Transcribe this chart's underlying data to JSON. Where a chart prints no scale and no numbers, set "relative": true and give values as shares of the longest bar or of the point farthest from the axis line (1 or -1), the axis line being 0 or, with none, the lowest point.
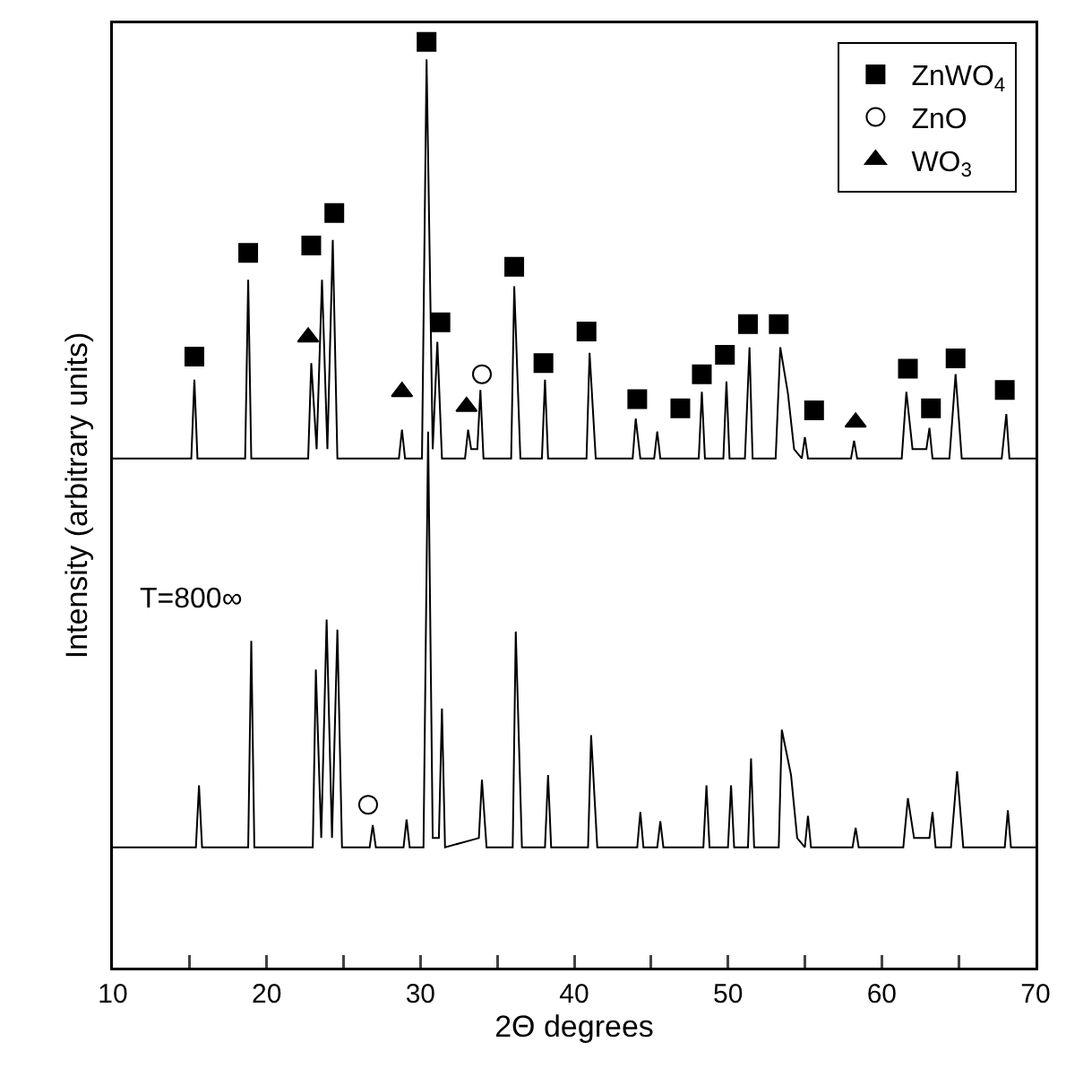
{
  "chart_data": {
    "type": "line",
    "relative": true,
    "xlabel": "2Θ degrees",
    "ylabel": "Intensity (arbitrary units)",
    "xlim": [
      10,
      70
    ],
    "xticks": [
      10,
      {
        "value": 15,
        "label": null
      },
      20,
      {
        "value": 25,
        "label": null
      },
      30,
      {
        "value": 35,
        "label": null
      },
      40,
      {
        "value": 45,
        "label": null
      },
      50,
      {
        "value": 55,
        "label": null
      },
      60,
      {
        "value": 65,
        "label": null
      },
      70
    ],
    "grid": false,
    "legend": "top right",
    "line_style": "solid",
    "annotations": [
      "T=800∞"
    ],
    "series": [
      {
        "color": "#000000",
        "marker": "none",
        "x": [
          10,
          15.1,
          15.3,
          15.5,
          18.6,
          18.8,
          19.0,
          22.7,
          22.9,
          23.25,
          23.6,
          23.95,
          24.3,
          24.6,
          28.6,
          28.8,
          29.0,
          30.1,
          30.4,
          30.8,
          31.1,
          31.4,
          32.9,
          33.1,
          33.3,
          33.7,
          33.9,
          34.1,
          35.9,
          36.1,
          36.5,
          37.9,
          38.1,
          38.3,
          40.8,
          41.0,
          41.4,
          43.8,
          44.0,
          44.3,
          45.2,
          45.4,
          45.6,
          48.1,
          48.3,
          48.5,
          49.7,
          49.9,
          50.1,
          51.1,
          51.4,
          51.6,
          53.1,
          53.4,
          53.9,
          54.3,
          54.8,
          55.0,
          55.2,
          58.0,
          58.2,
          58.4,
          61.3,
          61.6,
          62.0,
          62.9,
          63.1,
          63.3,
          64.4,
          64.8,
          65.2,
          67.8,
          68.1,
          68.3,
          70
        ],
        "values": [
          0.55,
          0.55,
          0.635,
          0.55,
          0.55,
          0.743,
          0.55,
          0.55,
          0.653,
          0.56,
          0.743,
          0.56,
          0.786,
          0.55,
          0.55,
          0.581,
          0.55,
          0.55,
          0.981,
          0.56,
          0.676,
          0.55,
          0.55,
          0.581,
          0.56,
          0.56,
          0.624,
          0.55,
          0.55,
          0.736,
          0.55,
          0.55,
          0.635,
          0.55,
          0.55,
          0.664,
          0.55,
          0.55,
          0.593,
          0.55,
          0.55,
          0.579,
          0.55,
          0.55,
          0.622,
          0.55,
          0.55,
          0.633,
          0.55,
          0.55,
          0.67,
          0.55,
          0.55,
          0.67,
          0.62,
          0.56,
          0.55,
          0.573,
          0.55,
          0.55,
          0.569,
          0.55,
          0.55,
          0.622,
          0.56,
          0.56,
          0.583,
          0.55,
          0.55,
          0.641,
          0.55,
          0.55,
          0.598,
          0.55,
          0.55
        ]
      },
      {
        "color": "#000000",
        "marker": "none",
        "x": [
          10,
          15.4,
          15.6,
          15.8,
          18.8,
          19.0,
          19.2,
          23.0,
          23.2,
          23.55,
          23.9,
          24.25,
          24.6,
          24.9,
          26.7,
          26.9,
          27.1,
          28.9,
          29.1,
          29.3,
          30.2,
          30.5,
          30.8,
          31.2,
          31.4,
          31.6,
          33.8,
          34.0,
          34.3,
          36.0,
          36.2,
          36.6,
          38.1,
          38.3,
          38.5,
          40.9,
          41.1,
          41.5,
          44.1,
          44.3,
          44.5,
          45.4,
          45.6,
          45.8,
          48.4,
          48.6,
          48.8,
          50.0,
          50.2,
          50.4,
          51.3,
          51.5,
          51.7,
          53.3,
          53.5,
          54.1,
          54.5,
          55.0,
          55.2,
          55.4,
          58.1,
          58.3,
          58.5,
          61.4,
          61.7,
          62.1,
          63.1,
          63.3,
          63.5,
          64.5,
          64.9,
          65.3,
          68.0,
          68.2,
          68.4,
          70
        ],
        "values": [
          0.13,
          0.13,
          0.197,
          0.13,
          0.13,
          0.353,
          0.13,
          0.13,
          0.322,
          0.14,
          0.376,
          0.14,
          0.365,
          0.13,
          0.13,
          0.154,
          0.13,
          0.13,
          0.16,
          0.13,
          0.13,
          0.579,
          0.14,
          0.14,
          0.28,
          0.13,
          0.14,
          0.203,
          0.13,
          0.13,
          0.363,
          0.13,
          0.13,
          0.208,
          0.13,
          0.13,
          0.251,
          0.13,
          0.13,
          0.168,
          0.13,
          0.13,
          0.158,
          0.13,
          0.13,
          0.197,
          0.13,
          0.13,
          0.197,
          0.13,
          0.13,
          0.226,
          0.13,
          0.13,
          0.257,
          0.208,
          0.14,
          0.13,
          0.164,
          0.13,
          0.13,
          0.151,
          0.13,
          0.13,
          0.183,
          0.14,
          0.14,
          0.168,
          0.13,
          0.13,
          0.212,
          0.13,
          0.13,
          0.17,
          0.13,
          0.13
        ]
      },
      {
        "type": "scatter",
        "name": "ZnWO$_{4}$",
        "color": "#000000",
        "marker": "square",
        "x": [
          15.3,
          18.8,
          22.9,
          24.4,
          30.4,
          31.3,
          36.1,
          38.0,
          40.8,
          44.1,
          46.9,
          48.3,
          49.8,
          51.3,
          53.3,
          55.6,
          61.7,
          63.2,
          64.8,
          68.0
        ],
        "values": [
          0.66,
          0.772,
          0.78,
          0.815,
          1,
          0.697,
          0.757,
          0.653,
          0.687,
          0.614,
          0.604,
          0.641,
          0.662,
          0.695,
          0.695,
          0.602,
          0.647,
          0.604,
          0.658,
          0.624
        ]
      },
      {
        "type": "scatter",
        "name": "ZnO",
        "color": "#000000",
        "marker": "circle-open",
        "x": [
          34.0,
          26.6
        ],
        "values": [
          0.641,
          0.176
        ]
      },
      {
        "type": "scatter",
        "name": "WO$_{3}$",
        "color": "#000000",
        "marker": "triangle",
        "x": [
          22.7,
          28.8,
          33.0,
          58.3
        ],
        "values": [
          0.681,
          0.622,
          0.606,
          0.589
        ]
      }
    ]
  }
}
